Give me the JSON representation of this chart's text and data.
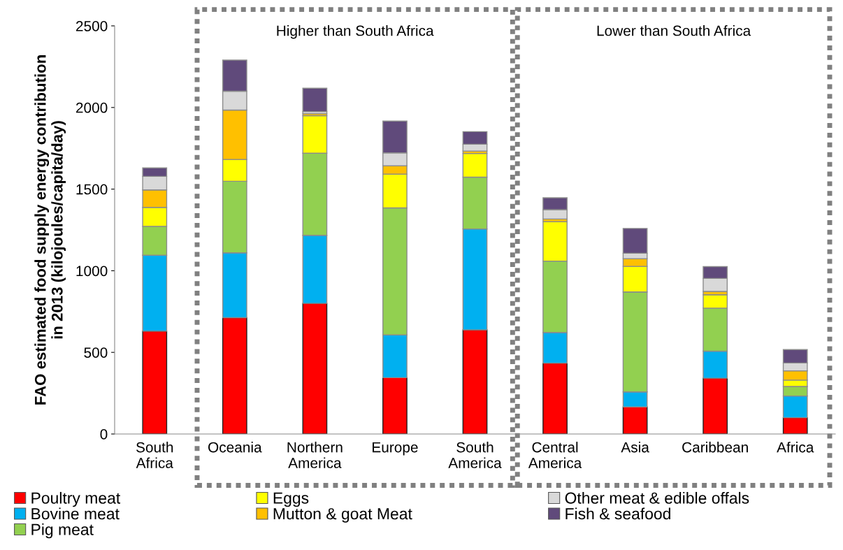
{
  "chart_data": {
    "type": "bar",
    "stacked": true,
    "ylabel": "FAO estimated food supply energy contribution\nin 2013 (kilojoules/capita/day)",
    "categories": [
      "South\nAfrica",
      "Oceania",
      "Northern\nAmerica",
      "Europe",
      "South\nAmerica",
      "Central\nAmerica",
      "Asia",
      "Caribbean",
      "Africa"
    ],
    "series": [
      {
        "name": "Poultry meat",
        "color": "#ff0000",
        "values": [
          630,
          713,
          800,
          345,
          638,
          434,
          166,
          342,
          100
        ]
      },
      {
        "name": "Bovine meat",
        "color": "#00b0f0",
        "values": [
          465,
          397,
          417,
          262,
          618,
          188,
          92,
          165,
          133
        ]
      },
      {
        "name": "Pig meat",
        "color": "#92d050",
        "values": [
          177,
          438,
          503,
          778,
          317,
          437,
          612,
          264,
          58
        ]
      },
      {
        "name": "Eggs",
        "color": "#ffff00",
        "values": [
          116,
          134,
          230,
          207,
          145,
          242,
          157,
          82,
          39
        ]
      },
      {
        "name": "Mutton & goat Meat",
        "color": "#ffc000",
        "values": [
          107,
          302,
          12,
          51,
          15,
          16,
          47,
          20,
          57
        ]
      },
      {
        "name": "Other meat & edible offals",
        "color": "#d9d9d9",
        "values": [
          83,
          116,
          13,
          79,
          42,
          57,
          33,
          80,
          48
        ]
      },
      {
        "name": "Fish & seafood",
        "color": "#604a7b",
        "values": [
          52,
          190,
          143,
          195,
          77,
          73,
          152,
          72,
          82
        ]
      }
    ],
    "ylim": [
      0,
      2500
    ],
    "yticks": [
      0,
      500,
      1000,
      1500,
      2000,
      2500
    ],
    "grid": false,
    "legend": "bottom",
    "annotations": [
      "Higher than South Africa",
      "Lower than South Africa"
    ]
  }
}
